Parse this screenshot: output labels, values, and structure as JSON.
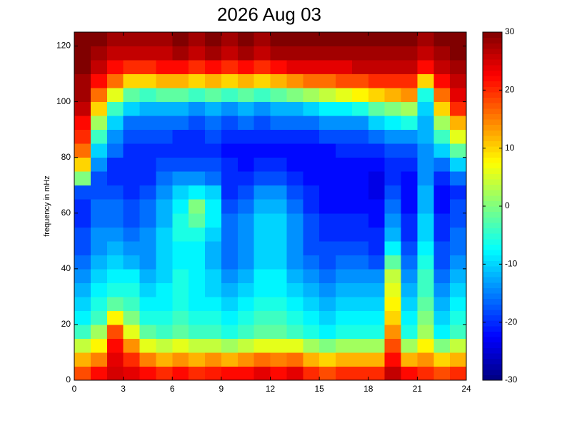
{
  "chart_data": {
    "type": "heatmap",
    "title": "2026 Aug 03",
    "y_label": "frequency in mHz",
    "xlim": [
      0,
      24
    ],
    "xticks": [
      0,
      3,
      6,
      9,
      12,
      15,
      18,
      21,
      24
    ],
    "ylim": [
      0,
      125
    ],
    "yticks": [
      0,
      20,
      40,
      60,
      80,
      100,
      120
    ],
    "colormap": "jet",
    "clim": [
      -30,
      30
    ],
    "colorbar_ticks": [
      -30,
      -20,
      -10,
      0,
      10,
      20,
      30
    ],
    "z": [
      [
        18,
        22,
        25,
        24,
        22,
        20,
        22,
        20,
        21,
        22,
        22,
        24,
        22,
        24,
        20,
        18,
        20,
        20,
        20,
        26,
        22,
        20,
        18,
        20
      ],
      [
        12,
        15,
        24,
        20,
        15,
        12,
        14,
        12,
        14,
        12,
        14,
        16,
        15,
        16,
        12,
        10,
        12,
        12,
        12,
        22,
        12,
        14,
        10,
        12
      ],
      [
        4,
        8,
        22,
        14,
        6,
        4,
        6,
        4,
        4,
        2,
        4,
        6,
        6,
        6,
        2,
        0,
        2,
        2,
        2,
        18,
        2,
        8,
        0,
        4
      ],
      [
        -4,
        2,
        18,
        6,
        -2,
        -4,
        -2,
        -4,
        -4,
        -6,
        -4,
        -2,
        -2,
        -4,
        -6,
        -8,
        -6,
        -6,
        -6,
        14,
        -6,
        2,
        -8,
        -4
      ],
      [
        -8,
        -4,
        8,
        0,
        -6,
        -6,
        -4,
        -6,
        -6,
        -8,
        -6,
        -4,
        -4,
        -6,
        -8,
        -10,
        -8,
        -8,
        -8,
        10,
        -8,
        0,
        -10,
        -6
      ],
      [
        -10,
        -6,
        -2,
        -4,
        -8,
        -8,
        -6,
        -8,
        -8,
        -10,
        -8,
        -6,
        -6,
        -8,
        -10,
        -12,
        -10,
        -10,
        -10,
        8,
        -10,
        -2,
        -12,
        -8
      ],
      [
        -12,
        -8,
        -6,
        -6,
        -10,
        -8,
        -6,
        -8,
        -10,
        -12,
        -10,
        -8,
        -8,
        -10,
        -12,
        -14,
        -12,
        -12,
        -12,
        6,
        -12,
        -4,
        -14,
        -10
      ],
      [
        -14,
        -10,
        -8,
        -8,
        -12,
        -10,
        -6,
        -8,
        -10,
        -14,
        -12,
        -8,
        -8,
        -12,
        -14,
        -16,
        -14,
        -14,
        -14,
        4,
        -14,
        -4,
        -16,
        -12
      ],
      [
        -16,
        -12,
        -10,
        -12,
        -14,
        -10,
        -8,
        -8,
        -12,
        -16,
        -14,
        -10,
        -10,
        -14,
        -16,
        -18,
        -16,
        -16,
        -18,
        -2,
        -16,
        -6,
        -18,
        -14
      ],
      [
        -18,
        -14,
        -12,
        -14,
        -14,
        -10,
        -8,
        -8,
        -12,
        -16,
        -14,
        -10,
        -10,
        -14,
        -18,
        -18,
        -18,
        -18,
        -20,
        -8,
        -18,
        -8,
        -18,
        -16
      ],
      [
        -18,
        -14,
        -14,
        -16,
        -14,
        -10,
        -6,
        -6,
        -10,
        -16,
        -14,
        -10,
        -10,
        -14,
        -18,
        -20,
        -20,
        -20,
        -20,
        -12,
        -20,
        -10,
        -20,
        -16
      ],
      [
        -20,
        -16,
        -16,
        -18,
        -16,
        -12,
        -6,
        -2,
        -8,
        -16,
        -14,
        -10,
        -10,
        -14,
        -18,
        -20,
        -20,
        -20,
        -22,
        -14,
        -20,
        -10,
        -20,
        -18
      ],
      [
        -20,
        -16,
        -16,
        -18,
        -16,
        -12,
        -8,
        0,
        -8,
        -18,
        -16,
        -12,
        -12,
        -16,
        -20,
        -22,
        -22,
        -22,
        -22,
        -16,
        -22,
        -12,
        -22,
        -18
      ],
      [
        -18,
        -18,
        -18,
        -20,
        -18,
        -14,
        -10,
        -8,
        -10,
        -20,
        -18,
        -14,
        -14,
        -18,
        -20,
        -22,
        -22,
        -22,
        -24,
        -18,
        -22,
        -12,
        -22,
        -20
      ],
      [
        0,
        -18,
        -20,
        -20,
        -20,
        -16,
        -14,
        -14,
        -16,
        -20,
        -20,
        -18,
        -18,
        -20,
        -22,
        -22,
        -22,
        -22,
        -24,
        -20,
        -22,
        -14,
        -20,
        -16
      ],
      [
        10,
        -14,
        -20,
        -20,
        -20,
        -18,
        -18,
        -18,
        -18,
        -20,
        -22,
        -20,
        -20,
        -22,
        -22,
        -22,
        -22,
        -22,
        -22,
        -20,
        -20,
        -14,
        -16,
        -10
      ],
      [
        16,
        -10,
        -16,
        -20,
        -20,
        -20,
        -20,
        -20,
        -20,
        -22,
        -22,
        -22,
        -22,
        -22,
        -22,
        -22,
        -20,
        -20,
        -20,
        -18,
        -18,
        -14,
        -10,
        -2
      ],
      [
        20,
        -4,
        -14,
        -18,
        -18,
        -18,
        -20,
        -20,
        -18,
        -20,
        -20,
        -20,
        -20,
        -20,
        -20,
        -18,
        -18,
        -18,
        -16,
        -14,
        -14,
        -12,
        -4,
        6
      ],
      [
        22,
        2,
        -10,
        -16,
        -16,
        -16,
        -16,
        -18,
        -16,
        -18,
        -16,
        -18,
        -16,
        -16,
        -16,
        -14,
        -14,
        -14,
        -10,
        -8,
        -6,
        -12,
        2,
        12
      ],
      [
        26,
        10,
        -4,
        -10,
        -12,
        -12,
        -12,
        -14,
        -12,
        -14,
        -12,
        -14,
        -12,
        -12,
        -10,
        -8,
        -8,
        -6,
        -2,
        0,
        2,
        -10,
        10,
        20
      ],
      [
        28,
        16,
        6,
        -2,
        -4,
        -2,
        -2,
        -4,
        -2,
        -4,
        -2,
        -4,
        -2,
        0,
        2,
        4,
        6,
        8,
        10,
        12,
        14,
        -6,
        16,
        24
      ],
      [
        28,
        22,
        16,
        10,
        10,
        12,
        12,
        10,
        12,
        10,
        12,
        10,
        12,
        14,
        16,
        16,
        18,
        18,
        20,
        20,
        20,
        10,
        22,
        26
      ],
      [
        30,
        26,
        22,
        20,
        20,
        22,
        22,
        20,
        22,
        20,
        22,
        20,
        22,
        24,
        24,
        24,
        24,
        26,
        26,
        26,
        26,
        22,
        26,
        28
      ],
      [
        30,
        28,
        26,
        26,
        26,
        26,
        28,
        26,
        28,
        26,
        28,
        26,
        28,
        28,
        28,
        28,
        28,
        28,
        28,
        28,
        28,
        26,
        28,
        30
      ],
      [
        30,
        30,
        28,
        28,
        28,
        28,
        30,
        28,
        30,
        28,
        30,
        28,
        30,
        30,
        30,
        30,
        30,
        30,
        30,
        30,
        30,
        28,
        30,
        30
      ]
    ]
  }
}
